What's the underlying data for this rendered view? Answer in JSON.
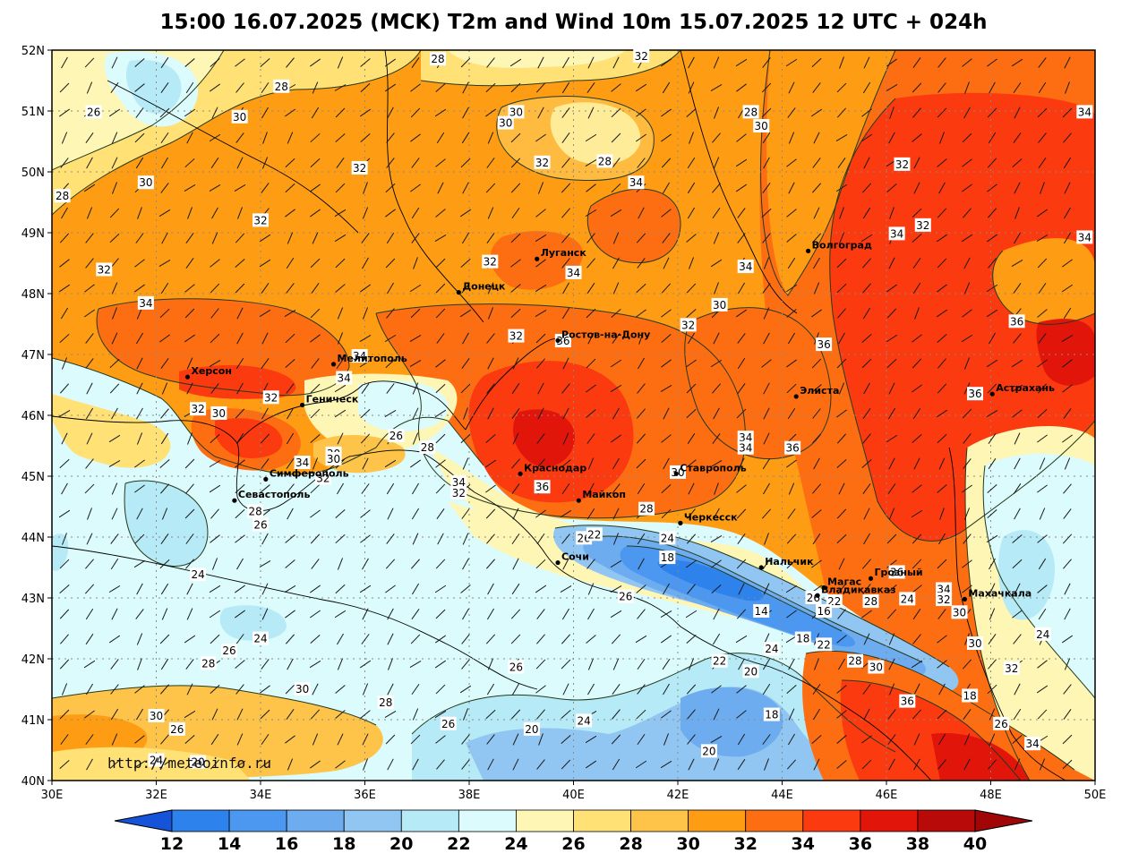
{
  "title": "15:00 16.07.2025 (MCK) T2m and Wind 10m 15.07.2025 12 UTC + 024h",
  "watermark": "http://meteoinfo.ru",
  "map": {
    "lon_range": [
      30,
      50
    ],
    "lat_range": [
      40,
      52
    ],
    "lat_labels": [
      "40N",
      "41N",
      "42N",
      "43N",
      "44N",
      "45N",
      "46N",
      "47N",
      "48N",
      "49N",
      "50N",
      "51N",
      "52N"
    ],
    "lon_labels": [
      "30E",
      "32E",
      "34E",
      "36E",
      "38E",
      "40E",
      "42E",
      "44E",
      "46E",
      "48E",
      "50E"
    ],
    "grid": true,
    "wind_barbs_shown": true
  },
  "colorbar": {
    "labels": [
      "12",
      "14",
      "16",
      "18",
      "20",
      "22",
      "24",
      "26",
      "28",
      "30",
      "32",
      "34",
      "36",
      "38",
      "40"
    ],
    "colors": [
      "#1f6fe6",
      "#2e82ec",
      "#4c97ef",
      "#6eacf0",
      "#92c6f2",
      "#b6eaf6",
      "#dcfbfd",
      "#fef6b4",
      "#ffe176",
      "#fec44a",
      "#fe9d14",
      "#fd6e12",
      "#fb3a10",
      "#e2150a",
      "#b80a08"
    ],
    "under_color": "#1553d8",
    "over_color": "#a00606"
  },
  "cities": [
    {
      "name": "Луганск",
      "lon": 39.3,
      "lat": 48.57
    },
    {
      "name": "Донецк",
      "lon": 37.8,
      "lat": 48.02
    },
    {
      "name": "Волгоград",
      "lon": 44.5,
      "lat": 48.7
    },
    {
      "name": "Ростов-на-Дону",
      "lon": 39.7,
      "lat": 47.23
    },
    {
      "name": "Мелитополь",
      "lon": 35.4,
      "lat": 46.84
    },
    {
      "name": "Элиста",
      "lon": 44.27,
      "lat": 46.31
    },
    {
      "name": "Астрахань",
      "lon": 48.03,
      "lat": 46.35
    },
    {
      "name": "Херсон",
      "lon": 32.6,
      "lat": 46.63
    },
    {
      "name": "Геническ",
      "lon": 34.8,
      "lat": 46.17
    },
    {
      "name": "Симферополь",
      "lon": 34.1,
      "lat": 44.95
    },
    {
      "name": "Севастополь",
      "lon": 33.5,
      "lat": 44.6
    },
    {
      "name": "Краснодар",
      "lon": 38.98,
      "lat": 45.04
    },
    {
      "name": "Ставрополь",
      "lon": 41.97,
      "lat": 45.04
    },
    {
      "name": "Майкоп",
      "lon": 40.1,
      "lat": 44.6
    },
    {
      "name": "Черкесск",
      "lon": 42.05,
      "lat": 44.23
    },
    {
      "name": "Сочи",
      "lon": 39.7,
      "lat": 43.58
    },
    {
      "name": "Нальчик",
      "lon": 43.6,
      "lat": 43.5
    },
    {
      "name": "Магас",
      "lon": 44.8,
      "lat": 43.17
    },
    {
      "name": "Грозный",
      "lon": 45.7,
      "lat": 43.32
    },
    {
      "name": "Владикавказ",
      "lon": 44.68,
      "lat": 43.04
    },
    {
      "name": "Махачкала",
      "lon": 47.5,
      "lat": 42.98
    }
  ],
  "isotherm_labels": [
    {
      "value": "28",
      "lon": 37.4,
      "lat": 51.85
    },
    {
      "value": "32",
      "lon": 41.3,
      "lat": 51.9
    },
    {
      "value": "28",
      "lon": 34.4,
      "lat": 51.4
    },
    {
      "value": "26",
      "lon": 30.8,
      "lat": 50.98
    },
    {
      "value": "30",
      "lon": 33.6,
      "lat": 50.9
    },
    {
      "value": "30",
      "lon": 38.9,
      "lat": 50.98
    },
    {
      "value": "30",
      "lon": 38.7,
      "lat": 50.8
    },
    {
      "value": "28",
      "lon": 43.4,
      "lat": 50.98
    },
    {
      "value": "30",
      "lon": 43.6,
      "lat": 50.75
    },
    {
      "value": "34",
      "lon": 49.8,
      "lat": 50.98
    },
    {
      "value": "32",
      "lon": 35.9,
      "lat": 50.06
    },
    {
      "value": "32",
      "lon": 39.4,
      "lat": 50.15
    },
    {
      "value": "28",
      "lon": 40.6,
      "lat": 50.17
    },
    {
      "value": "32",
      "lon": 46.3,
      "lat": 50.12
    },
    {
      "value": "30",
      "lon": 31.8,
      "lat": 49.82
    },
    {
      "value": "34",
      "lon": 41.2,
      "lat": 49.82
    },
    {
      "value": "28",
      "lon": 30.2,
      "lat": 49.6
    },
    {
      "value": "32",
      "lon": 34.0,
      "lat": 49.2
    },
    {
      "value": "32",
      "lon": 46.7,
      "lat": 49.12
    },
    {
      "value": "34",
      "lon": 46.2,
      "lat": 48.98
    },
    {
      "value": "34",
      "lon": 49.8,
      "lat": 48.92
    },
    {
      "value": "32",
      "lon": 31.0,
      "lat": 48.39
    },
    {
      "value": "32",
      "lon": 38.4,
      "lat": 48.52
    },
    {
      "value": "34",
      "lon": 40.0,
      "lat": 48.34
    },
    {
      "value": "34",
      "lon": 43.3,
      "lat": 48.44
    },
    {
      "value": "34",
      "lon": 31.8,
      "lat": 47.84
    },
    {
      "value": "30",
      "lon": 42.8,
      "lat": 47.81
    },
    {
      "value": "32",
      "lon": 42.2,
      "lat": 47.48
    },
    {
      "value": "36",
      "lon": 48.5,
      "lat": 47.54
    },
    {
      "value": "32",
      "lon": 38.9,
      "lat": 47.3
    },
    {
      "value": "36",
      "lon": 39.8,
      "lat": 47.22
    },
    {
      "value": "36",
      "lon": 44.8,
      "lat": 47.16
    },
    {
      "value": "34",
      "lon": 35.9,
      "lat": 46.97
    },
    {
      "value": "34",
      "lon": 35.6,
      "lat": 46.61
    },
    {
      "value": "32",
      "lon": 34.2,
      "lat": 46.29
    },
    {
      "value": "32",
      "lon": 32.8,
      "lat": 46.1
    },
    {
      "value": "30",
      "lon": 33.2,
      "lat": 46.03
    },
    {
      "value": "36",
      "lon": 47.7,
      "lat": 46.35
    },
    {
      "value": "26",
      "lon": 36.6,
      "lat": 45.66
    },
    {
      "value": "28",
      "lon": 37.2,
      "lat": 45.47
    },
    {
      "value": "34",
      "lon": 43.3,
      "lat": 45.63
    },
    {
      "value": "34",
      "lon": 43.3,
      "lat": 45.46
    },
    {
      "value": "36",
      "lon": 44.2,
      "lat": 45.46
    },
    {
      "value": "30",
      "lon": 35.4,
      "lat": 45.37
    },
    {
      "value": "30",
      "lon": 35.4,
      "lat": 45.28
    },
    {
      "value": "34",
      "lon": 34.8,
      "lat": 45.22
    },
    {
      "value": "32",
      "lon": 35.2,
      "lat": 44.96
    },
    {
      "value": "34",
      "lon": 37.8,
      "lat": 44.9
    },
    {
      "value": "32",
      "lon": 37.8,
      "lat": 44.72
    },
    {
      "value": "36",
      "lon": 39.4,
      "lat": 44.82
    },
    {
      "value": "30",
      "lon": 42.0,
      "lat": 45.06
    },
    {
      "value": "28",
      "lon": 41.4,
      "lat": 44.46
    },
    {
      "value": "28",
      "lon": 33.9,
      "lat": 44.42
    },
    {
      "value": "26",
      "lon": 34.0,
      "lat": 44.2
    },
    {
      "value": "26",
      "lon": 40.2,
      "lat": 43.98
    },
    {
      "value": "22",
      "lon": 40.4,
      "lat": 44.04
    },
    {
      "value": "24",
      "lon": 41.8,
      "lat": 43.98
    },
    {
      "value": "18",
      "lon": 41.8,
      "lat": 43.66
    },
    {
      "value": "36",
      "lon": 46.2,
      "lat": 43.42
    },
    {
      "value": "34",
      "lon": 47.1,
      "lat": 43.14
    },
    {
      "value": "32",
      "lon": 47.1,
      "lat": 42.97
    },
    {
      "value": "30",
      "lon": 47.4,
      "lat": 42.76
    },
    {
      "value": "24",
      "lon": 32.8,
      "lat": 43.38
    },
    {
      "value": "26",
      "lon": 41.0,
      "lat": 43.02
    },
    {
      "value": "26",
      "lon": 44.6,
      "lat": 43.0
    },
    {
      "value": "22",
      "lon": 45.0,
      "lat": 42.94
    },
    {
      "value": "28",
      "lon": 45.7,
      "lat": 42.94
    },
    {
      "value": "24",
      "lon": 46.4,
      "lat": 42.98
    },
    {
      "value": "14",
      "lon": 43.6,
      "lat": 42.78
    },
    {
      "value": "16",
      "lon": 44.8,
      "lat": 42.78
    },
    {
      "value": "24",
      "lon": 34.0,
      "lat": 42.33
    },
    {
      "value": "18",
      "lon": 44.4,
      "lat": 42.33
    },
    {
      "value": "22",
      "lon": 44.8,
      "lat": 42.23
    },
    {
      "value": "24",
      "lon": 43.8,
      "lat": 42.16
    },
    {
      "value": "30",
      "lon": 47.7,
      "lat": 42.25
    },
    {
      "value": "26",
      "lon": 33.4,
      "lat": 42.13
    },
    {
      "value": "28",
      "lon": 33.0,
      "lat": 41.92
    },
    {
      "value": "26",
      "lon": 38.9,
      "lat": 41.86
    },
    {
      "value": "22",
      "lon": 42.8,
      "lat": 41.96
    },
    {
      "value": "28",
      "lon": 45.4,
      "lat": 41.96
    },
    {
      "value": "30",
      "lon": 45.8,
      "lat": 41.86
    },
    {
      "value": "20",
      "lon": 43.4,
      "lat": 41.79
    },
    {
      "value": "32",
      "lon": 48.4,
      "lat": 41.84
    },
    {
      "value": "24",
      "lon": 49.0,
      "lat": 42.4
    },
    {
      "value": "30",
      "lon": 34.8,
      "lat": 41.5
    },
    {
      "value": "28",
      "lon": 36.4,
      "lat": 41.28
    },
    {
      "value": "36",
      "lon": 46.4,
      "lat": 41.3
    },
    {
      "value": "18",
      "lon": 47.6,
      "lat": 41.39
    },
    {
      "value": "30",
      "lon": 32.0,
      "lat": 41.06
    },
    {
      "value": "18",
      "lon": 43.8,
      "lat": 41.08
    },
    {
      "value": "24",
      "lon": 40.2,
      "lat": 40.98
    },
    {
      "value": "26",
      "lon": 37.6,
      "lat": 40.93
    },
    {
      "value": "26",
      "lon": 48.2,
      "lat": 40.93
    },
    {
      "value": "26",
      "lon": 32.4,
      "lat": 40.84
    },
    {
      "value": "20",
      "lon": 39.2,
      "lat": 40.84
    },
    {
      "value": "34",
      "lon": 48.8,
      "lat": 40.6
    },
    {
      "value": "20",
      "lon": 42.6,
      "lat": 40.48
    },
    {
      "value": "24",
      "lon": 32.0,
      "lat": 40.33
    },
    {
      "value": "20",
      "lon": 32.8,
      "lat": 40.3
    }
  ]
}
